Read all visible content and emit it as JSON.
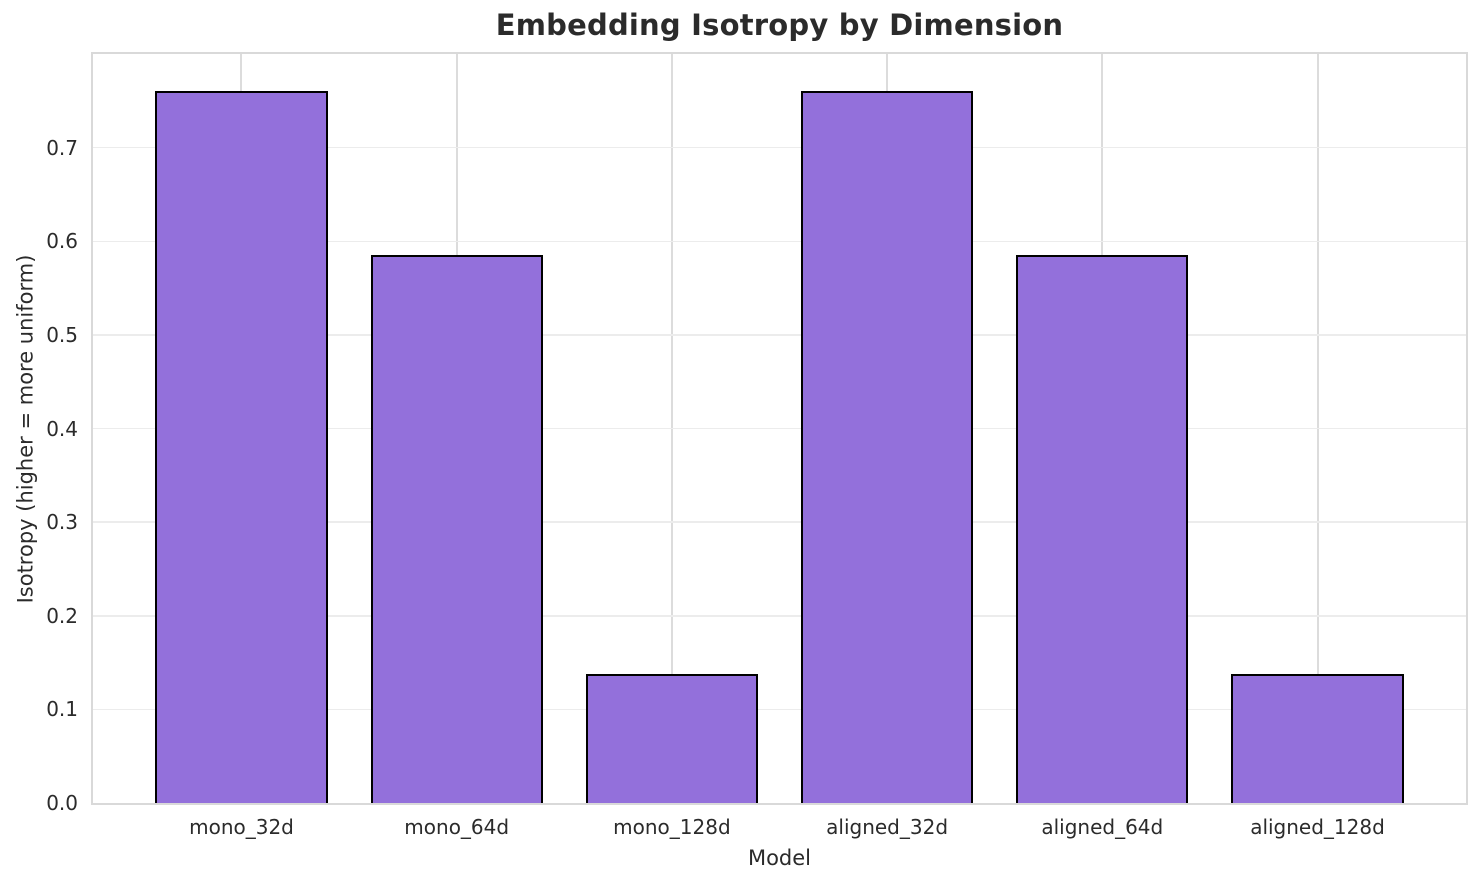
{
  "chart_data": {
    "type": "bar",
    "title": "Embedding Isotropy by Dimension",
    "xlabel": "Model",
    "ylabel": "Isotropy (higher = more uniform)",
    "categories": [
      "mono_32d",
      "mono_64d",
      "mono_128d",
      "aligned_32d",
      "aligned_64d",
      "aligned_128d"
    ],
    "values": [
      0.761,
      0.585,
      0.138,
      0.761,
      0.585,
      0.138
    ],
    "ylim": [
      0,
      0.8
    ],
    "yticks": [
      0,
      0.1,
      0.2,
      0.3,
      0.4,
      0.5,
      0.6,
      0.7
    ],
    "ytick_labels": [
      "0.0",
      "0.1",
      "0.2",
      "0.3",
      "0.4",
      "0.5",
      "0.6",
      "0.7"
    ],
    "bar_width_fraction": 0.8,
    "grid": true,
    "legend": null,
    "colors": {
      "bar_fill": "#9370DB",
      "bar_edge": "#000000",
      "grid_vertical": "#dcdcdc",
      "grid_horizontal": "#ececec",
      "spine": "#d9d9d9",
      "text": "#2b2b2b",
      "background": "#ffffff"
    }
  }
}
